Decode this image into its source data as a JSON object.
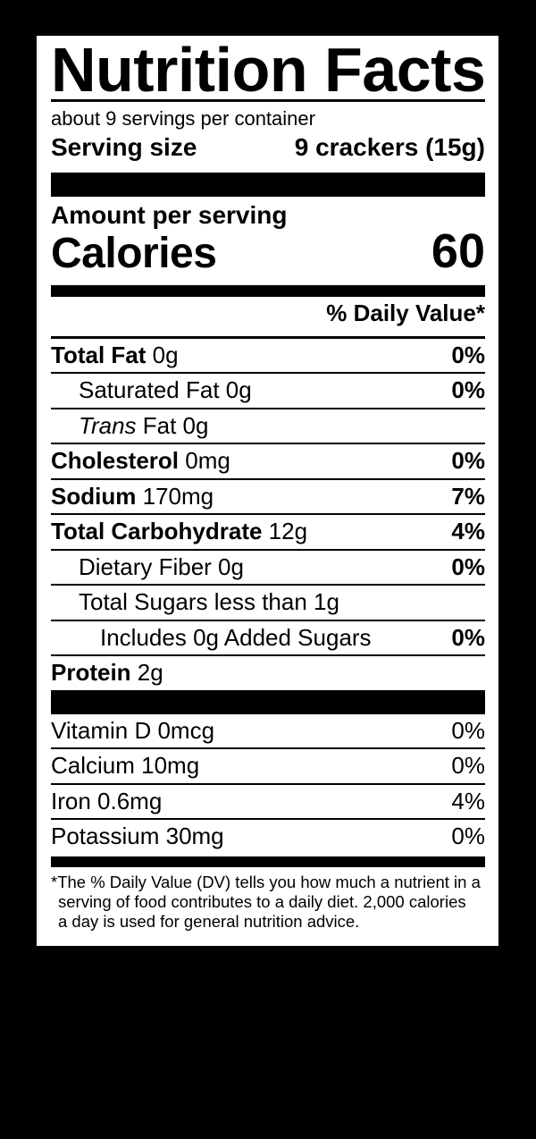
{
  "colors": {
    "background": "#000000",
    "label_background": "#ffffff",
    "text": "#000000"
  },
  "label": {
    "title": "Nutrition Facts",
    "servings_per_container": "about 9 servings per container",
    "serving_size_label": "Serving size",
    "serving_size_value": "9 crackers (15g)",
    "amount_per_serving": "Amount per serving",
    "calories_label": "Calories",
    "calories_value": "60",
    "daily_value_header": "% Daily Value*",
    "nutrients": [
      {
        "bold": "Total Fat",
        "rest": " 0g",
        "dv": "0%"
      },
      {
        "bold": "",
        "rest": "Saturated Fat 0g",
        "dv": "0%"
      },
      {
        "bold": "",
        "italic": "Trans",
        "rest": " Fat 0g",
        "dv": ""
      },
      {
        "bold": "Cholesterol",
        "rest": " 0mg",
        "dv": "0%"
      },
      {
        "bold": "Sodium",
        "rest": " 170mg",
        "dv": "7%"
      },
      {
        "bold": "Total Carbohydrate",
        "rest": " 12g",
        "dv": "4%"
      },
      {
        "bold": "",
        "rest": "Dietary Fiber 0g",
        "dv": "0%"
      },
      {
        "bold": "",
        "rest": "Total Sugars less than 1g",
        "dv": ""
      },
      {
        "bold": "",
        "rest": "Includes 0g Added Sugars",
        "dv": "0%"
      },
      {
        "bold": "Protein",
        "rest": " 2g",
        "dv": ""
      }
    ],
    "vitamins": [
      {
        "label": "Vitamin D 0mcg",
        "dv": "0%"
      },
      {
        "label": "Calcium 10mg",
        "dv": "0%"
      },
      {
        "label": "Iron 0.6mg",
        "dv": "4%"
      },
      {
        "label": "Potassium 30mg",
        "dv": "0%"
      }
    ],
    "footnote_lines": [
      "*The % Daily Value (DV) tells you how much a nutrient in a",
      "serving of food contributes to a daily diet. 2,000 calories",
      "a day is used for general nutrition advice."
    ]
  }
}
